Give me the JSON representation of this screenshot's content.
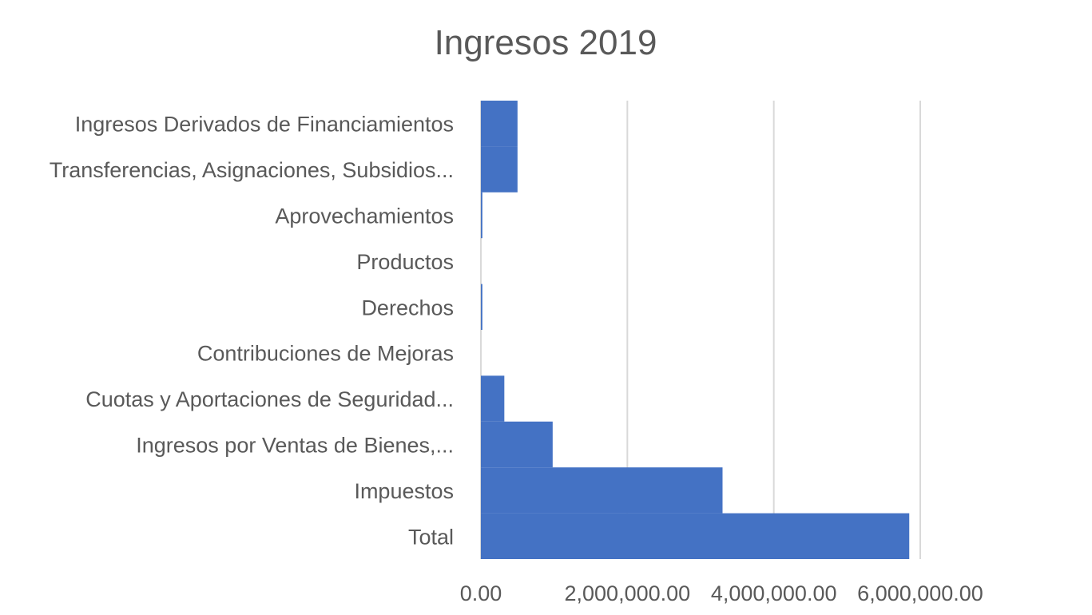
{
  "chart_data": {
    "type": "bar",
    "orientation": "horizontal",
    "title": "Ingresos 2019",
    "categories": [
      "Ingresos Derivados de Financiamientos",
      "Transferencias, Asignaciones, Subsidios...",
      "Aprovechamientos",
      "Productos",
      "Derechos",
      "Contribuciones de Mejoras",
      "Cuotas y Aportaciones de Seguridad...",
      "Ingresos por Ventas de Bienes,...",
      "Impuestos",
      "Total"
    ],
    "values": [
      500000,
      500000,
      20000,
      0,
      20000,
      0,
      320000,
      980000,
      3300000,
      5850000
    ],
    "xlim": [
      0,
      6000000
    ],
    "x_ticks": [
      0,
      2000000,
      4000000,
      6000000
    ],
    "x_tick_labels": [
      "0.00",
      "2,000,000.00",
      "4,000,000.00",
      "6,000,000.00"
    ],
    "grid": true,
    "bar_color": "#4472C4",
    "grid_color": "#D9D9D9"
  }
}
